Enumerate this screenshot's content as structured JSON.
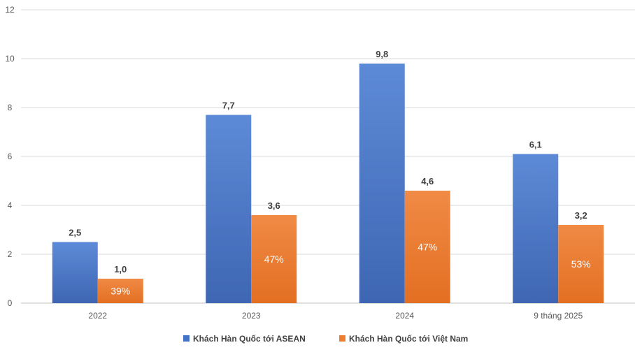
{
  "chart_data": {
    "type": "bar",
    "categories": [
      "2022",
      "2023",
      "2024",
      "9 tháng 2025"
    ],
    "series": [
      {
        "name": "Khách Hàn Quốc tới ASEAN",
        "values": [
          2.5,
          7.7,
          9.8,
          6.1
        ],
        "value_labels": [
          "2,5",
          "7,7",
          "9,8",
          "6,1"
        ],
        "color": "#4472C4"
      },
      {
        "name": "Khách Hàn Quốc tới Việt Nam",
        "values": [
          1.0,
          3.6,
          4.6,
          3.2
        ],
        "value_labels": [
          "1,0",
          "3,6",
          "4,6",
          "3,2"
        ],
        "inner_labels": [
          "39%",
          "47%",
          "47%",
          "53%"
        ],
        "color": "#ED7D31"
      }
    ],
    "y_ticks": [
      "0",
      "2",
      "4",
      "6",
      "8",
      "10",
      "12"
    ],
    "ylim": [
      0,
      12
    ],
    "grid": true,
    "legend_position": "bottom"
  }
}
